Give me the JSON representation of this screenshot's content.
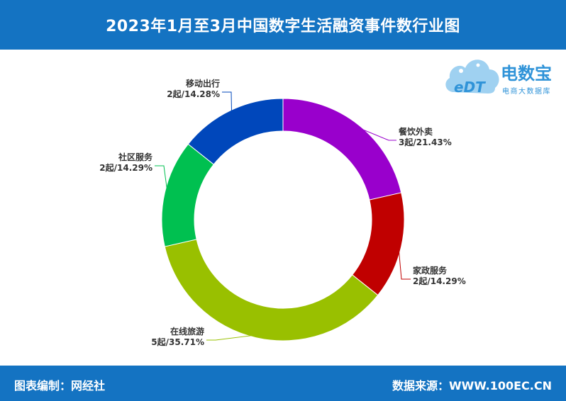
{
  "header": {
    "title": "2023年1月至3月中国数字生活融资事件数行业图"
  },
  "footer": {
    "left": "图表编制：网经社",
    "right": "数据来源：WWW.100EC.CN"
  },
  "logo": {
    "mark": "eDT",
    "name": "电数宝",
    "tagline": "电商大数据库"
  },
  "colors": {
    "header_bg": "#1473c2",
    "餐饮外卖": "#9900cc",
    "家政服务": "#c00000",
    "在线旅游": "#99c000",
    "社区服务": "#00c050",
    "移动出行": "#0047bb"
  },
  "chart_data": {
    "type": "pie",
    "donut": true,
    "title": "2023年1月至3月中国数字生活融资事件数行业图",
    "unit": "起",
    "categories": [
      "餐饮外卖",
      "家政服务",
      "在线旅游",
      "社区服务",
      "移动出行"
    ],
    "values": [
      3,
      2,
      5,
      2,
      2
    ],
    "value_labels": [
      "3起/21.43%",
      "2起/14.29%",
      "5起/35.71%",
      "2起/14.29%",
      "2起/14.28%"
    ],
    "colors": [
      "#9900cc",
      "#c00000",
      "#99c000",
      "#00c050",
      "#0047bb"
    ],
    "legend": "none"
  }
}
